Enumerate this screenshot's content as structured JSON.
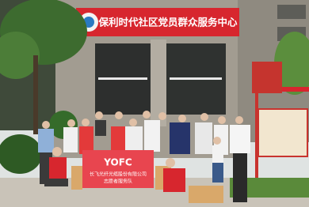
{
  "sign": {
    "text": "保利时代社区党员群众服务中心"
  },
  "banner": {
    "logo": "YOFC",
    "company": "长飞光纤光缆股份有限公司",
    "team": "志愿者服务队"
  }
}
